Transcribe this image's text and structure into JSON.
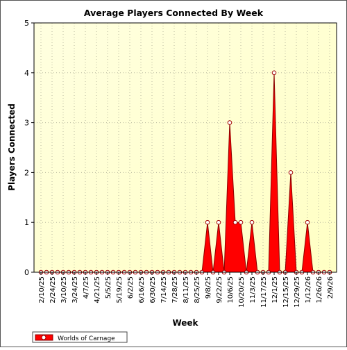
{
  "chart_data": {
    "type": "area",
    "title": "Average Players Connected By Week",
    "xlabel": "Week",
    "ylabel": "Players Connected",
    "ylim": [
      0,
      5
    ],
    "yticks": [
      0,
      1,
      2,
      3,
      4,
      5
    ],
    "grid": true,
    "legend_position": "bottom-left",
    "x_tick_labels": [
      "2/10/25",
      "2/24/25",
      "3/10/25",
      "3/24/25",
      "4/7/25",
      "4/21/25",
      "5/5/25",
      "5/19/25",
      "6/2/25",
      "6/16/25",
      "6/30/25",
      "7/14/25",
      "7/28/25",
      "8/11/25",
      "8/25/25",
      "9/8/25",
      "9/22/25",
      "10/6/25",
      "10/20/25",
      "11/3/25",
      "11/17/25",
      "12/1/25",
      "12/15/25",
      "12/29/25",
      "1/12/26",
      "1/26/26",
      "2/9/26"
    ],
    "x": [
      "2/10/25",
      "2/17/25",
      "2/24/25",
      "3/3/25",
      "3/10/25",
      "3/17/25",
      "3/24/25",
      "3/31/25",
      "4/7/25",
      "4/14/25",
      "4/21/25",
      "4/28/25",
      "5/5/25",
      "5/12/25",
      "5/19/25",
      "5/26/25",
      "6/2/25",
      "6/9/25",
      "6/16/25",
      "6/23/25",
      "6/30/25",
      "7/7/25",
      "7/14/25",
      "7/21/25",
      "7/28/25",
      "8/4/25",
      "8/11/25",
      "8/18/25",
      "8/25/25",
      "9/1/25",
      "9/8/25",
      "9/15/25",
      "9/22/25",
      "9/29/25",
      "10/6/25",
      "10/13/25",
      "10/20/25",
      "10/27/25",
      "11/3/25",
      "11/10/25",
      "11/17/25",
      "11/24/25",
      "12/1/25",
      "12/8/25",
      "12/15/25",
      "12/22/25",
      "12/29/25",
      "1/5/26",
      "1/12/26",
      "1/19/26",
      "1/26/26",
      "2/2/26",
      "2/9/26"
    ],
    "series": [
      {
        "name": "Worlds of Carnage",
        "color": "#ff0000",
        "values": [
          0,
          0,
          0,
          0,
          0,
          0,
          0,
          0,
          0,
          0,
          0,
          0,
          0,
          0,
          0,
          0,
          0,
          0,
          0,
          0,
          0,
          0,
          0,
          0,
          0,
          0,
          0,
          0,
          0,
          0,
          1,
          0,
          1,
          0,
          3,
          1,
          1,
          0,
          1,
          0,
          0,
          0,
          4,
          0,
          0,
          2,
          0,
          0,
          1,
          0,
          0,
          0,
          0
        ]
      }
    ]
  },
  "colors": {
    "plot_background_top": "#ffffe0",
    "plot_background_bottom": "#ffffc4",
    "area_fill": "#ff0000",
    "area_stroke": "#8b0000",
    "marker_stroke": "#a00000",
    "gridline": "#b9b9a0"
  }
}
